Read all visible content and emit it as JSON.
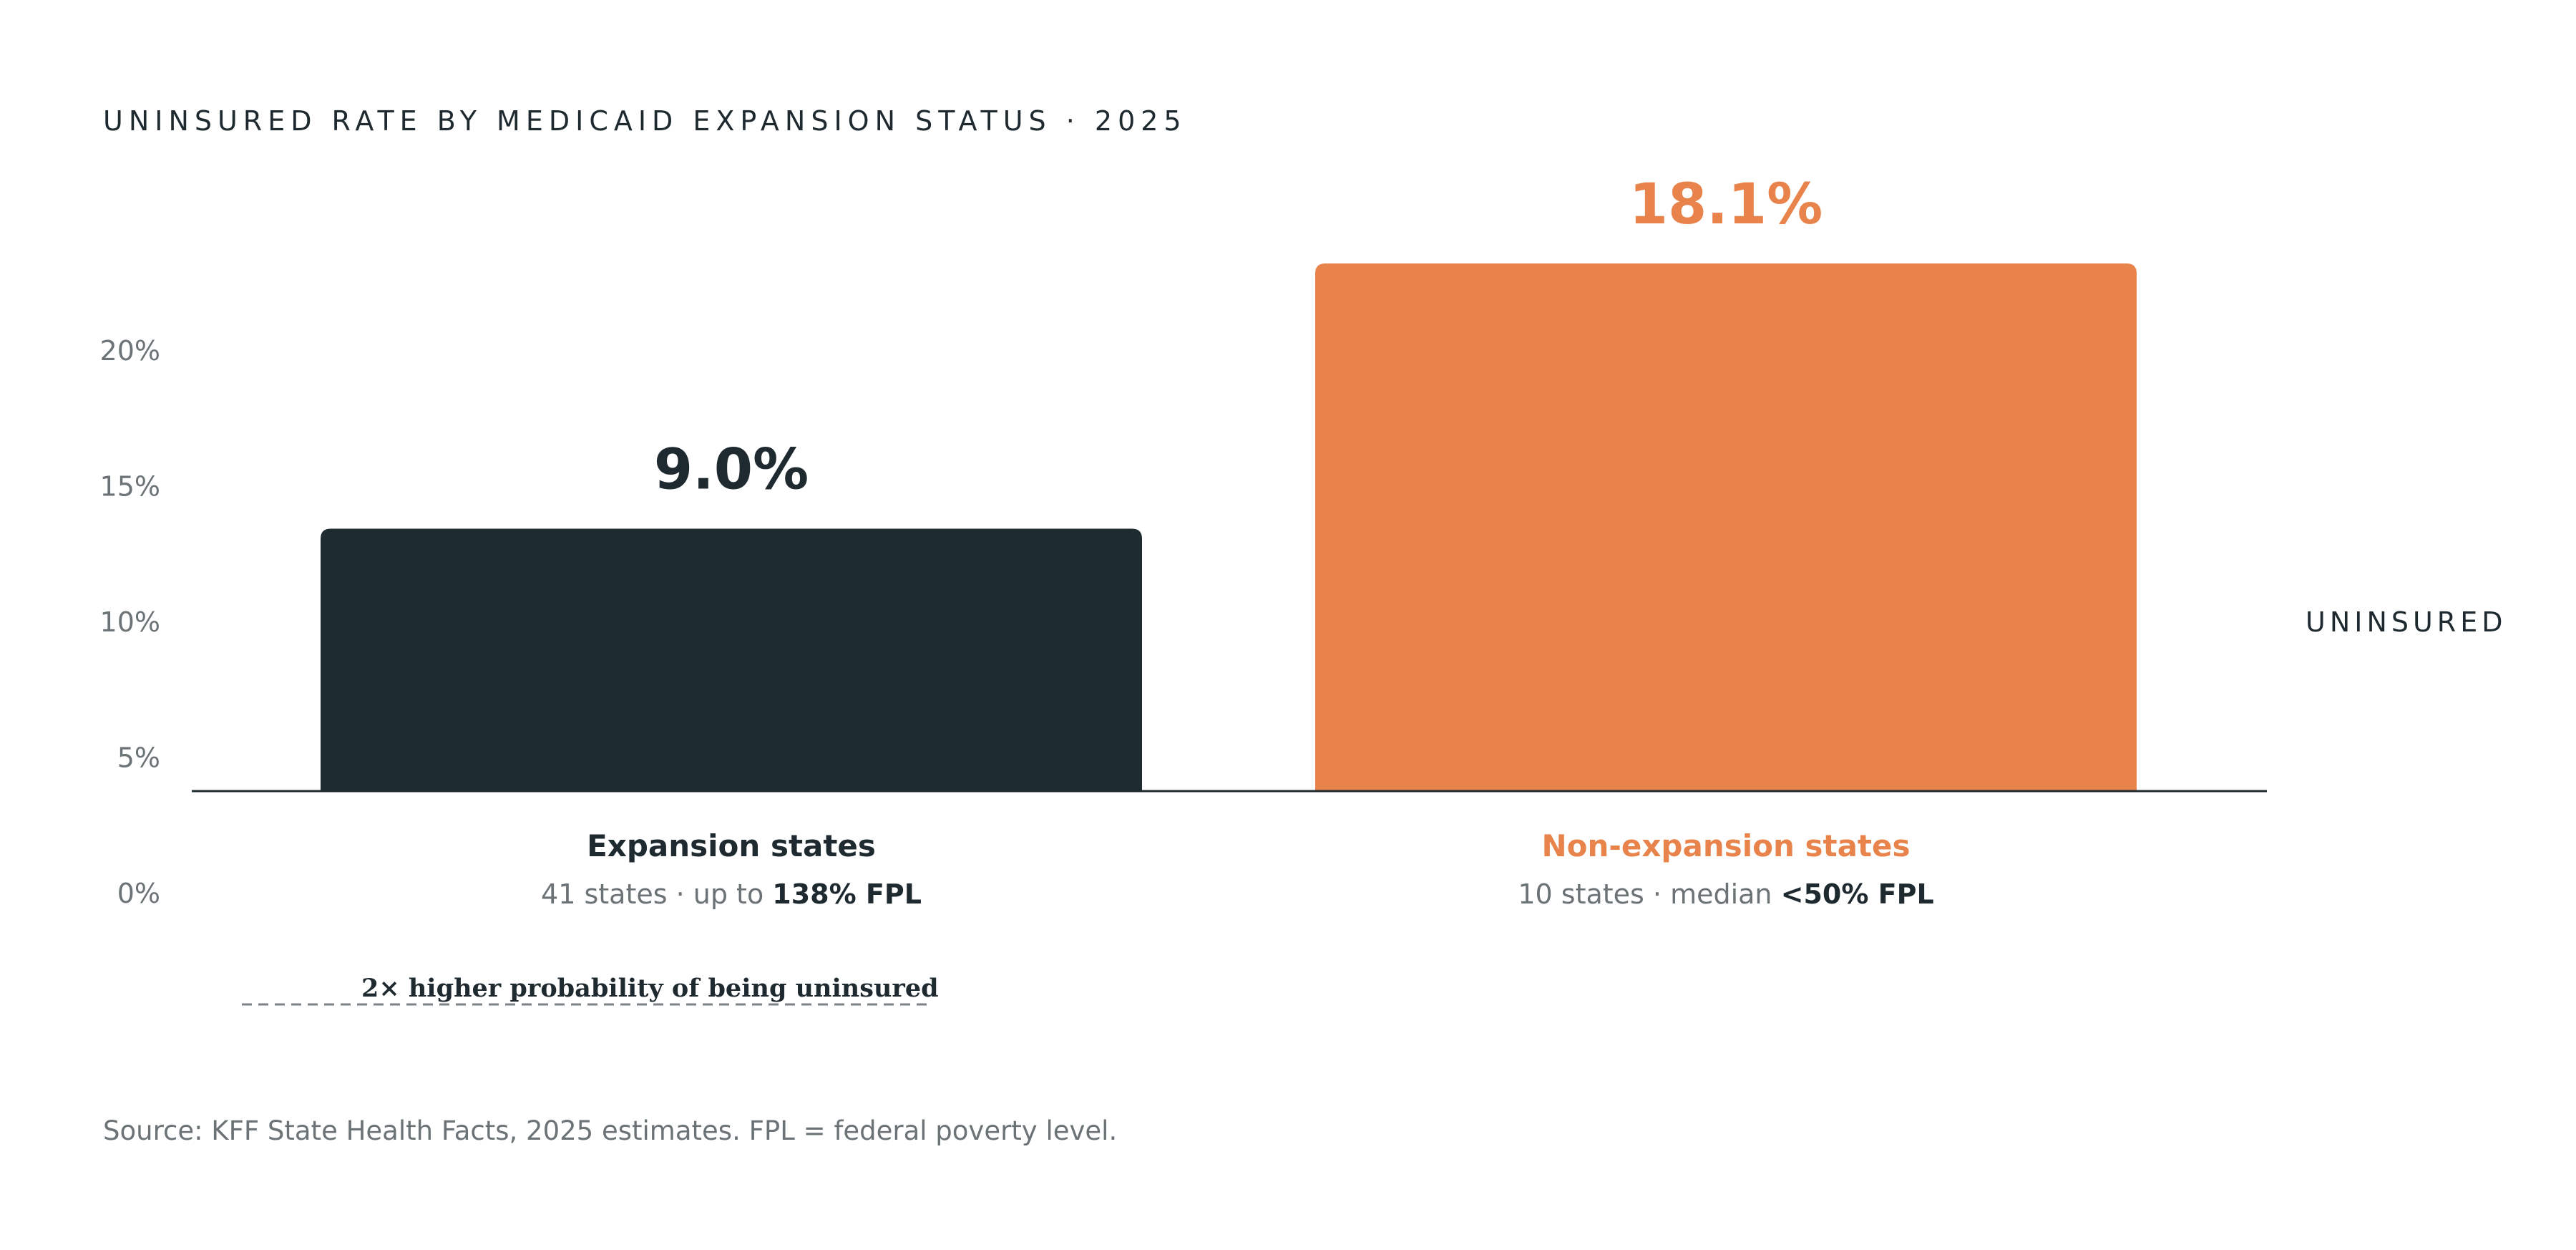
{
  "chart_data": {
    "type": "bar",
    "title": "UNINSURED RATE BY MEDICAID EXPANSION STATUS · 2025",
    "categories": [
      "Expansion states",
      "Non-expansion states"
    ],
    "values": [
      9.0,
      18.1
    ],
    "value_labels": [
      "9.0%",
      "18.1%"
    ],
    "category_details": [
      {
        "prefix": "41 states · up to ",
        "bold": "138% FPL"
      },
      {
        "prefix": "10 states · median ",
        "bold": "<50% FPL"
      }
    ],
    "colors": [
      "#1e2b31",
      "#e8844b"
    ],
    "y_ticks": [
      "20%",
      "15%",
      "10%",
      "5%",
      "0%"
    ],
    "ylabel": "UNINSURED",
    "annotation": "2× higher probability of being uninsured",
    "source": "Source: KFF State Health Facts, 2025 estimates. FPL = federal poverty level.",
    "grid": false,
    "legend": "none"
  }
}
